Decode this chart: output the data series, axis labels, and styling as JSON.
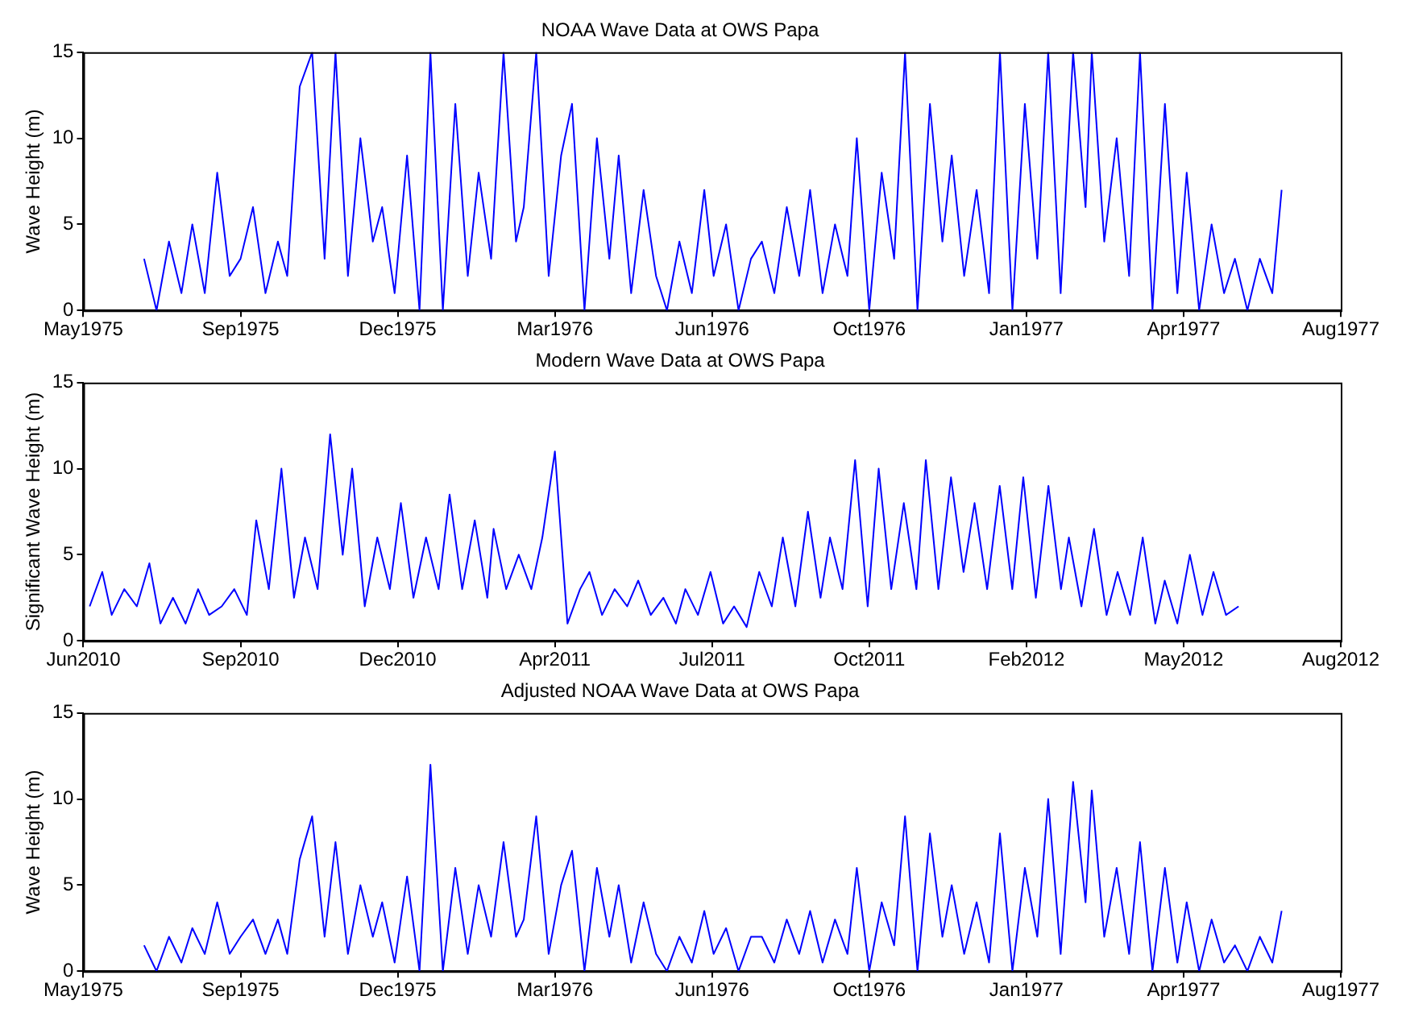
{
  "chart_data": [
    {
      "type": "line",
      "title": "NOAA Wave Data at OWS Papa",
      "ylabel": "Wave Height (m)",
      "grid": false,
      "x": [
        "1975-07-01",
        "1975-07-09",
        "1975-07-17",
        "1975-07-25",
        "1975-08-01",
        "1975-08-09",
        "1975-08-17",
        "1975-08-25",
        "1975-09-01",
        "1975-09-09",
        "1975-09-17",
        "1975-09-25",
        "1975-10-01",
        "1975-10-09",
        "1975-10-17",
        "1975-10-25",
        "1975-11-01",
        "1975-11-09",
        "1975-11-17",
        "1975-11-25",
        "1975-12-01",
        "1975-12-09",
        "1975-12-17",
        "1975-12-25",
        "1976-01-01",
        "1976-01-09",
        "1976-01-17",
        "1976-01-25",
        "1976-02-01",
        "1976-02-09",
        "1976-02-17",
        "1976-02-25",
        "1976-03-01",
        "1976-03-09",
        "1976-03-17",
        "1976-03-25",
        "1976-04-01",
        "1976-04-09",
        "1976-04-17",
        "1976-04-25",
        "1976-05-01",
        "1976-05-09",
        "1976-05-17",
        "1976-05-25",
        "1976-06-01",
        "1976-06-09",
        "1976-06-17",
        "1976-06-25",
        "1976-07-01",
        "1976-07-09",
        "1976-07-17",
        "1976-07-25",
        "1976-08-01",
        "1976-08-09",
        "1976-08-17",
        "1976-08-25",
        "1976-09-01",
        "1976-09-09",
        "1976-09-17",
        "1976-09-25",
        "1976-10-01",
        "1976-10-09",
        "1976-10-17",
        "1976-10-25",
        "1976-11-01",
        "1976-11-09",
        "1976-11-17",
        "1976-11-25",
        "1976-12-01",
        "1976-12-09",
        "1976-12-17",
        "1976-12-25",
        "1977-01-01",
        "1977-01-09",
        "1977-01-17",
        "1977-01-25",
        "1977-02-01",
        "1977-02-09",
        "1977-02-17",
        "1977-02-25",
        "1977-03-01",
        "1977-03-09",
        "1977-03-17",
        "1977-03-25",
        "1977-04-01",
        "1977-04-09",
        "1977-04-17",
        "1977-04-25",
        "1977-05-01",
        "1977-05-09",
        "1977-05-17",
        "1977-05-25",
        "1977-06-01",
        "1977-06-09",
        "1977-06-17",
        "1977-06-25",
        "1977-07-01"
      ],
      "series": [
        {
          "color": "#0000ff",
          "values": [
            3,
            0,
            4,
            1,
            5,
            1,
            8,
            2,
            3,
            6,
            1,
            4,
            2,
            13,
            15,
            3,
            15,
            2,
            10,
            4,
            6,
            1,
            9,
            0,
            15,
            0,
            12,
            2,
            8,
            3,
            15,
            4,
            6,
            15,
            2,
            9,
            12,
            0,
            10,
            3,
            9,
            1,
            7,
            2,
            0,
            4,
            1,
            7,
            2,
            5,
            0,
            3,
            4,
            1,
            6,
            2,
            7,
            1,
            5,
            2,
            10,
            0,
            8,
            3,
            15,
            0,
            12,
            4,
            9,
            2,
            7,
            1,
            15,
            0,
            12,
            3,
            15,
            1,
            15,
            6,
            15,
            4,
            10,
            2,
            15,
            0,
            12,
            1,
            8,
            0,
            5,
            1,
            3,
            0,
            3,
            1,
            7
          ]
        }
      ],
      "xlim": [
        "1975-05-23",
        "1977-08-08"
      ],
      "xticks": [
        {
          "value": "1975-05-23",
          "label": "May1975"
        },
        {
          "value": "1975-09-01",
          "label": "Sep1975"
        },
        {
          "value": "1975-12-11",
          "label": "Dec1975"
        },
        {
          "value": "1976-03-21",
          "label": "Mar1976"
        },
        {
          "value": "1976-06-30",
          "label": "Jun1976"
        },
        {
          "value": "1976-10-09",
          "label": "Oct1976"
        },
        {
          "value": "1977-01-18",
          "label": "Jan1977"
        },
        {
          "value": "1977-04-29",
          "label": "Apr1977"
        },
        {
          "value": "1977-08-08",
          "label": "Aug1977"
        }
      ],
      "ylim": [
        0,
        15
      ],
      "yticks": [
        0,
        5,
        10,
        15
      ]
    },
    {
      "type": "line",
      "title": "Modern Wave Data at OWS Papa",
      "ylabel": "Significant Wave Height (m)",
      "grid": false,
      "x": [
        "2010-06-17",
        "2010-06-25",
        "2010-07-01",
        "2010-07-09",
        "2010-07-17",
        "2010-07-25",
        "2010-08-01",
        "2010-08-09",
        "2010-08-17",
        "2010-08-25",
        "2010-09-01",
        "2010-09-09",
        "2010-09-17",
        "2010-09-25",
        "2010-10-01",
        "2010-10-09",
        "2010-10-17",
        "2010-10-25",
        "2010-11-01",
        "2010-11-09",
        "2010-11-17",
        "2010-11-25",
        "2010-12-01",
        "2010-12-09",
        "2010-12-17",
        "2010-12-25",
        "2011-01-01",
        "2011-01-09",
        "2011-01-17",
        "2011-01-25",
        "2011-02-01",
        "2011-02-09",
        "2011-02-17",
        "2011-02-25",
        "2011-03-01",
        "2011-03-09",
        "2011-03-17",
        "2011-03-25",
        "2011-04-01",
        "2011-04-09",
        "2011-04-17",
        "2011-04-25",
        "2011-05-01",
        "2011-05-09",
        "2011-05-17",
        "2011-05-25",
        "2011-06-01",
        "2011-06-09",
        "2011-06-17",
        "2011-06-25",
        "2011-07-01",
        "2011-07-09",
        "2011-07-17",
        "2011-07-25",
        "2011-08-01",
        "2011-08-09",
        "2011-08-17",
        "2011-08-25",
        "2011-09-01",
        "2011-09-09",
        "2011-09-17",
        "2011-09-25",
        "2011-10-01",
        "2011-10-09",
        "2011-10-17",
        "2011-10-25",
        "2011-11-01",
        "2011-11-09",
        "2011-11-17",
        "2011-11-25",
        "2011-12-01",
        "2011-12-09",
        "2011-12-17",
        "2011-12-25",
        "2012-01-01",
        "2012-01-09",
        "2012-01-17",
        "2012-01-25",
        "2012-02-01",
        "2012-02-09",
        "2012-02-17",
        "2012-02-25",
        "2012-03-01",
        "2012-03-09",
        "2012-03-17",
        "2012-03-25",
        "2012-04-01",
        "2012-04-09",
        "2012-04-17",
        "2012-04-25",
        "2012-05-01",
        "2012-05-09",
        "2012-05-17",
        "2012-05-25",
        "2012-06-01",
        "2012-06-09",
        "2012-06-17"
      ],
      "series": [
        {
          "color": "#0000ff",
          "values": [
            2,
            4,
            1.5,
            3,
            2,
            4.5,
            1,
            2.5,
            1,
            3,
            1.5,
            2,
            3,
            1.5,
            7,
            3,
            10,
            2.5,
            6,
            3,
            12,
            5,
            10,
            2,
            6,
            3,
            8,
            2.5,
            6,
            3,
            8.5,
            3,
            7,
            2.5,
            6.5,
            3,
            5,
            3,
            6,
            11,
            1,
            3,
            4,
            1.5,
            3,
            2,
            3.5,
            1.5,
            2.5,
            1,
            3,
            1.5,
            4,
            1,
            2,
            0.8,
            4,
            2,
            6,
            2,
            7.5,
            2.5,
            6,
            3,
            10.5,
            2,
            10,
            3,
            8,
            3,
            10.5,
            3,
            9.5,
            4,
            8,
            3,
            9,
            3,
            9.5,
            2.5,
            9,
            3,
            6,
            2,
            6.5,
            1.5,
            4,
            1.5,
            6,
            1,
            3.5,
            1,
            5,
            1.5,
            4,
            1.5,
            2
          ]
        }
      ],
      "xlim": [
        "2010-06-13",
        "2012-08-21"
      ],
      "xticks": [
        {
          "value": "2010-06-13",
          "label": "Jun2010"
        },
        {
          "value": "2010-09-21",
          "label": "Sep2010"
        },
        {
          "value": "2010-12-30",
          "label": "Dec2010"
        },
        {
          "value": "2011-04-09",
          "label": "Apr2011"
        },
        {
          "value": "2011-07-18",
          "label": "Jul2011"
        },
        {
          "value": "2011-10-26",
          "label": "Oct2011"
        },
        {
          "value": "2012-02-03",
          "label": "Feb2012"
        },
        {
          "value": "2012-05-13",
          "label": "May2012"
        },
        {
          "value": "2012-08-21",
          "label": "Aug2012"
        }
      ],
      "ylim": [
        0,
        15
      ],
      "yticks": [
        0,
        5,
        10,
        15
      ]
    },
    {
      "type": "line",
      "title": "Adjusted NOAA Wave Data at OWS Papa",
      "ylabel": "Wave Height (m)",
      "grid": false,
      "x": [
        "1975-07-01",
        "1975-07-09",
        "1975-07-17",
        "1975-07-25",
        "1975-08-01",
        "1975-08-09",
        "1975-08-17",
        "1975-08-25",
        "1975-09-01",
        "1975-09-09",
        "1975-09-17",
        "1975-09-25",
        "1975-10-01",
        "1975-10-09",
        "1975-10-17",
        "1975-10-25",
        "1975-11-01",
        "1975-11-09",
        "1975-11-17",
        "1975-11-25",
        "1975-12-01",
        "1975-12-09",
        "1975-12-17",
        "1975-12-25",
        "1976-01-01",
        "1976-01-09",
        "1976-01-17",
        "1976-01-25",
        "1976-02-01",
        "1976-02-09",
        "1976-02-17",
        "1976-02-25",
        "1976-03-01",
        "1976-03-09",
        "1976-03-17",
        "1976-03-25",
        "1976-04-01",
        "1976-04-09",
        "1976-04-17",
        "1976-04-25",
        "1976-05-01",
        "1976-05-09",
        "1976-05-17",
        "1976-05-25",
        "1976-06-01",
        "1976-06-09",
        "1976-06-17",
        "1976-06-25",
        "1976-07-01",
        "1976-07-09",
        "1976-07-17",
        "1976-07-25",
        "1976-08-01",
        "1976-08-09",
        "1976-08-17",
        "1976-08-25",
        "1976-09-01",
        "1976-09-09",
        "1976-09-17",
        "1976-09-25",
        "1976-10-01",
        "1976-10-09",
        "1976-10-17",
        "1976-10-25",
        "1976-11-01",
        "1976-11-09",
        "1976-11-17",
        "1976-11-25",
        "1976-12-01",
        "1976-12-09",
        "1976-12-17",
        "1976-12-25",
        "1977-01-01",
        "1977-01-09",
        "1977-01-17",
        "1977-01-25",
        "1977-02-01",
        "1977-02-09",
        "1977-02-17",
        "1977-02-25",
        "1977-03-01",
        "1977-03-09",
        "1977-03-17",
        "1977-03-25",
        "1977-04-01",
        "1977-04-09",
        "1977-04-17",
        "1977-04-25",
        "1977-05-01",
        "1977-05-09",
        "1977-05-17",
        "1977-05-25",
        "1977-06-01",
        "1977-06-09",
        "1977-06-17",
        "1977-06-25",
        "1977-07-01"
      ],
      "series": [
        {
          "color": "#0000ff",
          "values": [
            1.5,
            0,
            2,
            0.5,
            2.5,
            1,
            4,
            1,
            2,
            3,
            1,
            3,
            1,
            6.5,
            9,
            2,
            7.5,
            1,
            5,
            2,
            4,
            0.5,
            5.5,
            0,
            12,
            0,
            6,
            1,
            5,
            2,
            7.5,
            2,
            3,
            9,
            1,
            5,
            7,
            0,
            6,
            2,
            5,
            0.5,
            4,
            1,
            0,
            2,
            0.5,
            3.5,
            1,
            2.5,
            0,
            2,
            2,
            0.5,
            3,
            1,
            3.5,
            0.5,
            3,
            1,
            6,
            0,
            4,
            1.5,
            9,
            0,
            8,
            2,
            5,
            1,
            4,
            0.5,
            8,
            0,
            6,
            2,
            10,
            1,
            11,
            4,
            10.5,
            2,
            6,
            1,
            7.5,
            0,
            6,
            0.5,
            4,
            0,
            3,
            0.5,
            1.5,
            0,
            2,
            0.5,
            3.5
          ]
        }
      ],
      "xlim": [
        "1975-05-23",
        "1977-08-08"
      ],
      "xticks": [
        {
          "value": "1975-05-23",
          "label": "May1975"
        },
        {
          "value": "1975-09-01",
          "label": "Sep1975"
        },
        {
          "value": "1975-12-11",
          "label": "Dec1975"
        },
        {
          "value": "1976-03-21",
          "label": "Mar1976"
        },
        {
          "value": "1976-06-30",
          "label": "Jun1976"
        },
        {
          "value": "1976-10-09",
          "label": "Oct1976"
        },
        {
          "value": "1977-01-18",
          "label": "Jan1977"
        },
        {
          "value": "1977-04-29",
          "label": "Apr1977"
        },
        {
          "value": "1977-08-08",
          "label": "Aug1977"
        }
      ],
      "ylim": [
        0,
        15
      ],
      "yticks": [
        0,
        5,
        10,
        15
      ]
    }
  ]
}
